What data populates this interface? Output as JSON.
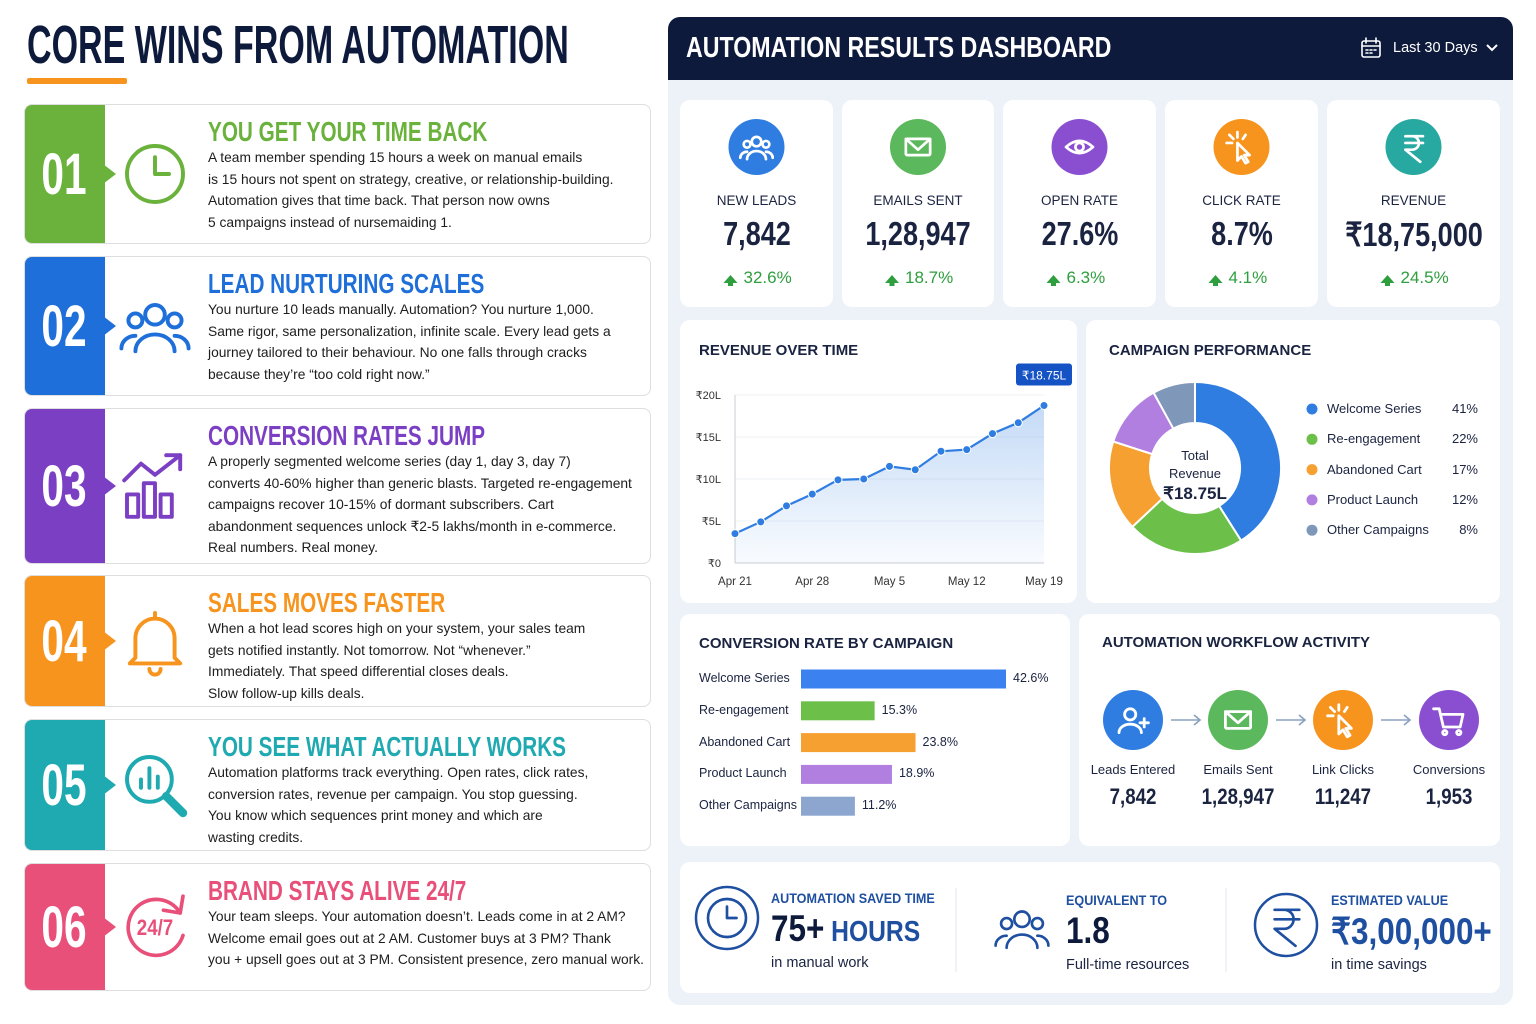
{
  "left": {
    "title": "CORE WINS FROM AUTOMATION",
    "items": [
      {
        "number": "01",
        "heading": "YOU GET YOUR TIME BACK",
        "color": "#6ab23c",
        "lines": [
          "A team member spending 15 hours a week on manual emails",
          "is 15 hours not spent on strategy, creative, or relationship-building.",
          "Automation gives that time back. That person now owns",
          "5 campaigns instead of nursemaiding 1."
        ]
      },
      {
        "number": "02",
        "heading": "LEAD NURTURING SCALES",
        "color": "#1e6fd9",
        "lines": [
          "You nurture 10 leads manually. Automation? You nurture 1,000.",
          "Same rigor, same personalization, infinite scale. Every lead gets a",
          "journey tailored to their behaviour. No one falls through cracks",
          "because they’re “too cold right now.”"
        ]
      },
      {
        "number": "03",
        "heading": "CONVERSION RATES JUMP",
        "color": "#7b3fc4",
        "lines": [
          "A properly segmented welcome series (day 1, day 3, day 7)",
          "converts 40-60% higher than generic blasts. Targeted re-engagement",
          "campaigns recover 10-15% of dormant subscribers. Cart",
          "abandonment sequences unlock ₹2-5 lakhs/month in e-commerce.",
          "Real numbers. Real money."
        ]
      },
      {
        "number": "04",
        "heading": "SALES MOVES FASTER",
        "color": "#f7941d",
        "lines": [
          "When a hot lead scores high on your system, your sales team",
          "gets notified instantly. Not tomorrow. Not “whenever.”",
          "Immediately. That speed differential closes deals.",
          "Slow follow-up kills deals."
        ]
      },
      {
        "number": "05",
        "heading": "YOU SEE WHAT ACTUALLY WORKS",
        "color": "#1fa9b0",
        "lines": [
          "Automation platforms track everything. Open rates, click rates,",
          "conversion rates, revenue per campaign. You stop guessing.",
          "You know which sequences print money and which are",
          "wasting credits."
        ]
      },
      {
        "number": "06",
        "heading": "BRAND STAYS ALIVE 24/7",
        "color": "#e8507a",
        "icon_text": "24/7",
        "lines": [
          "Your team sleeps. Your automation doesn’t. Leads come in at 2 AM?",
          "Welcome email goes out at 2 AM. Customer buys at 3 PM? Thank",
          "you + upsell goes out at 3 PM. Consistent presence, zero manual work."
        ]
      }
    ]
  },
  "dashboard": {
    "title": "AUTOMATION RESULTS DASHBOARD",
    "date_range": "Last 30 Days",
    "kpis": [
      {
        "label": "NEW LEADS",
        "value": "7,842",
        "change": "32.6%",
        "color": "#2f7de1"
      },
      {
        "label": "EMAILS SENT",
        "value": "1,28,947",
        "change": "18.7%",
        "color": "#5cb85c"
      },
      {
        "label": "OPEN RATE",
        "value": "27.6%",
        "change": "6.3%",
        "color": "#8a4fd0"
      },
      {
        "label": "CLICK RATE",
        "value": "8.7%",
        "change": "4.1%",
        "color": "#f7941d"
      },
      {
        "label": "REVENUE",
        "value": "₹18,75,000",
        "change": "24.5%",
        "color": "#27a9a1"
      }
    ],
    "workflow": {
      "title": "AUTOMATION WORKFLOW ACTIVITY",
      "steps": [
        {
          "label": "Leads Entered",
          "value": "7,842",
          "color": "#2f7de1"
        },
        {
          "label": "Emails Sent",
          "value": "1,28,947",
          "color": "#5cb85c"
        },
        {
          "label": "Link Clicks",
          "value": "11,247",
          "color": "#f7941d"
        },
        {
          "label": "Conversions",
          "value": "1,953",
          "color": "#8a4fd0"
        }
      ]
    },
    "summary": [
      {
        "label": "AUTOMATION SAVED TIME",
        "value": "75+",
        "unit": "HOURS",
        "sub": "in manual work"
      },
      {
        "label": "EQUIVALENT TO",
        "value": "1.8",
        "sub": "Full-time resources"
      },
      {
        "label": "ESTIMATED VALUE",
        "value": "₹3,00,000+",
        "sub": "in time savings"
      }
    ]
  },
  "chart_data": [
    {
      "type": "line",
      "title": "REVENUE OVER TIME",
      "categories": [
        "Apr 21",
        null,
        null,
        "Apr 28",
        null,
        null,
        "May 5",
        null,
        null,
        "May 12",
        null,
        null,
        "May 19"
      ],
      "values": [
        3.5,
        4.9,
        6.8,
        8.2,
        9.9,
        10.0,
        11.5,
        11.1,
        13.3,
        13.5,
        15.4,
        16.7,
        18.75
      ],
      "value_labels": [
        null,
        null,
        null,
        null,
        null,
        null,
        null,
        null,
        null,
        null,
        null,
        null,
        "₹18.75L"
      ],
      "color": "#2f7de1",
      "ylim": [
        0,
        20
      ],
      "grid": true,
      "yticks": [
        {
          "value": 0,
          "label": "₹0"
        },
        {
          "value": 5,
          "label": "₹5L"
        },
        {
          "value": 10,
          "label": "₹10L"
        },
        {
          "value": 15,
          "label": "₹15L"
        },
        {
          "value": 20,
          "label": "₹20L"
        }
      ]
    },
    {
      "type": "pie",
      "title": "CAMPAIGN PERFORMANCE",
      "center_label": [
        "Total",
        "Revenue",
        "₹18.75L"
      ],
      "categories": [
        "Welcome Series",
        "Re-engagement",
        "Abandoned Cart",
        "Product Launch",
        "Other Campaigns"
      ],
      "values": [
        41,
        22,
        17,
        12,
        8
      ],
      "value_labels": [
        "41%",
        "22%",
        "17%",
        "12%",
        "8%"
      ],
      "colors": [
        "#2f7de1",
        "#6cc04a",
        "#f7a032",
        "#b07fe0",
        "#7f97b8"
      ]
    },
    {
      "type": "bar",
      "orientation": "horizontal",
      "title": "CONVERSION RATE BY CAMPAIGN",
      "categories": [
        "Welcome Series",
        "Re-engagement",
        "Abandoned Cart",
        "Product Launch",
        "Other Campaigns"
      ],
      "values": [
        42.6,
        15.3,
        23.8,
        18.9,
        11.2
      ],
      "value_labels": [
        "42.6%",
        "15.3%",
        "23.8%",
        "18.9%",
        "11.2%"
      ],
      "colors": [
        "#3b82f0",
        "#6cc04a",
        "#f7a032",
        "#b07fe0",
        "#8ca6d0"
      ]
    }
  ]
}
